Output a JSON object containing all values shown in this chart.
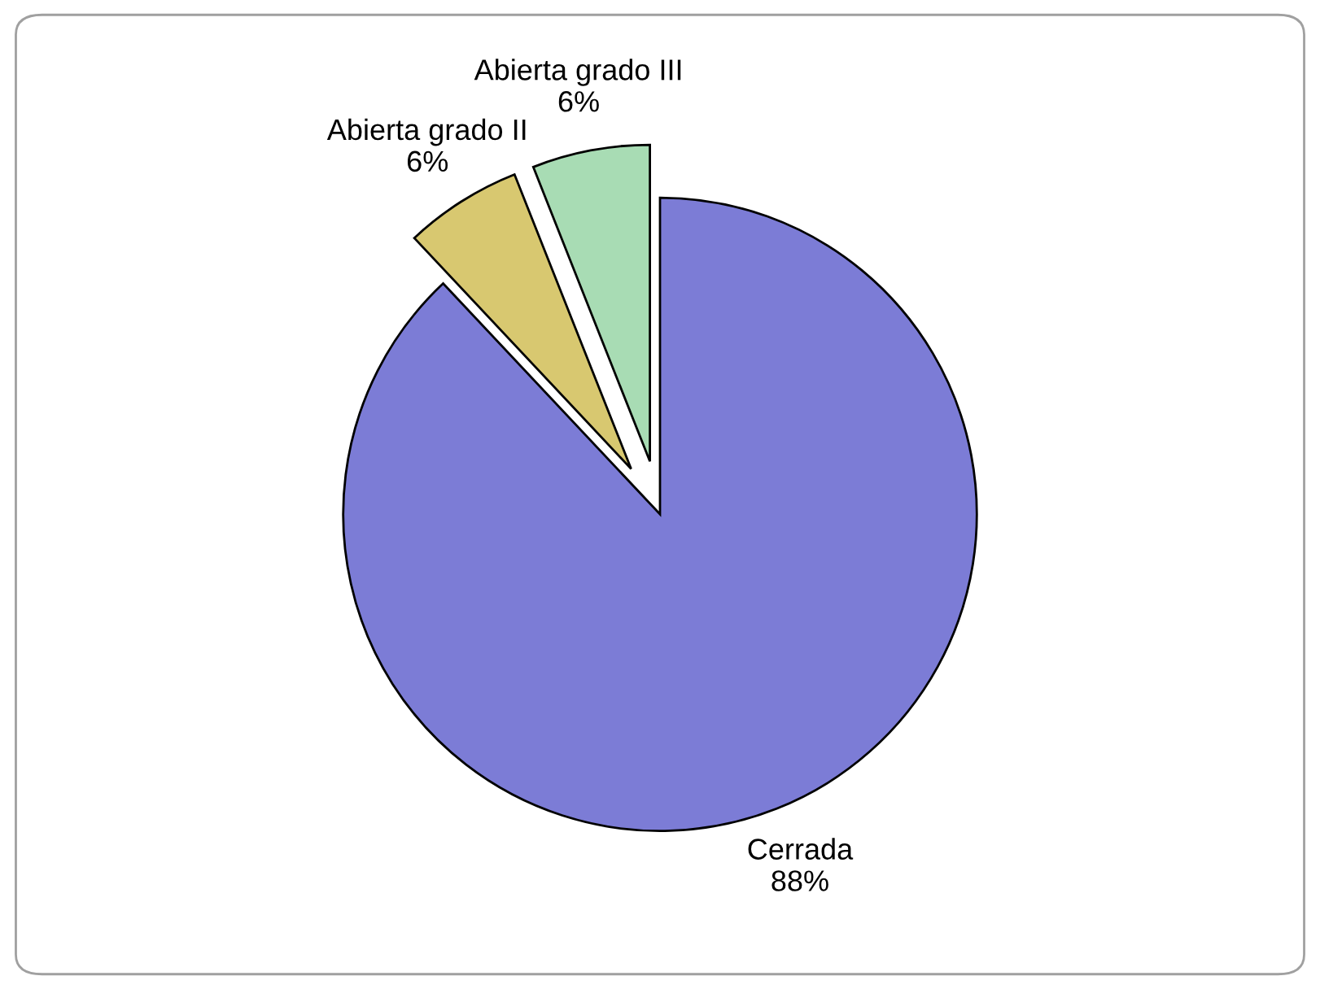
{
  "chart_data": {
    "type": "pie",
    "categories": [
      "Cerrada",
      "Abierta grado II",
      "Abierta grado III"
    ],
    "values": [
      88,
      6,
      6
    ],
    "value_labels": [
      "88%",
      "6%",
      "6%"
    ],
    "colors": [
      "#7c7cd6",
      "#d8c870",
      "#a8dcb4"
    ],
    "legend": false
  }
}
